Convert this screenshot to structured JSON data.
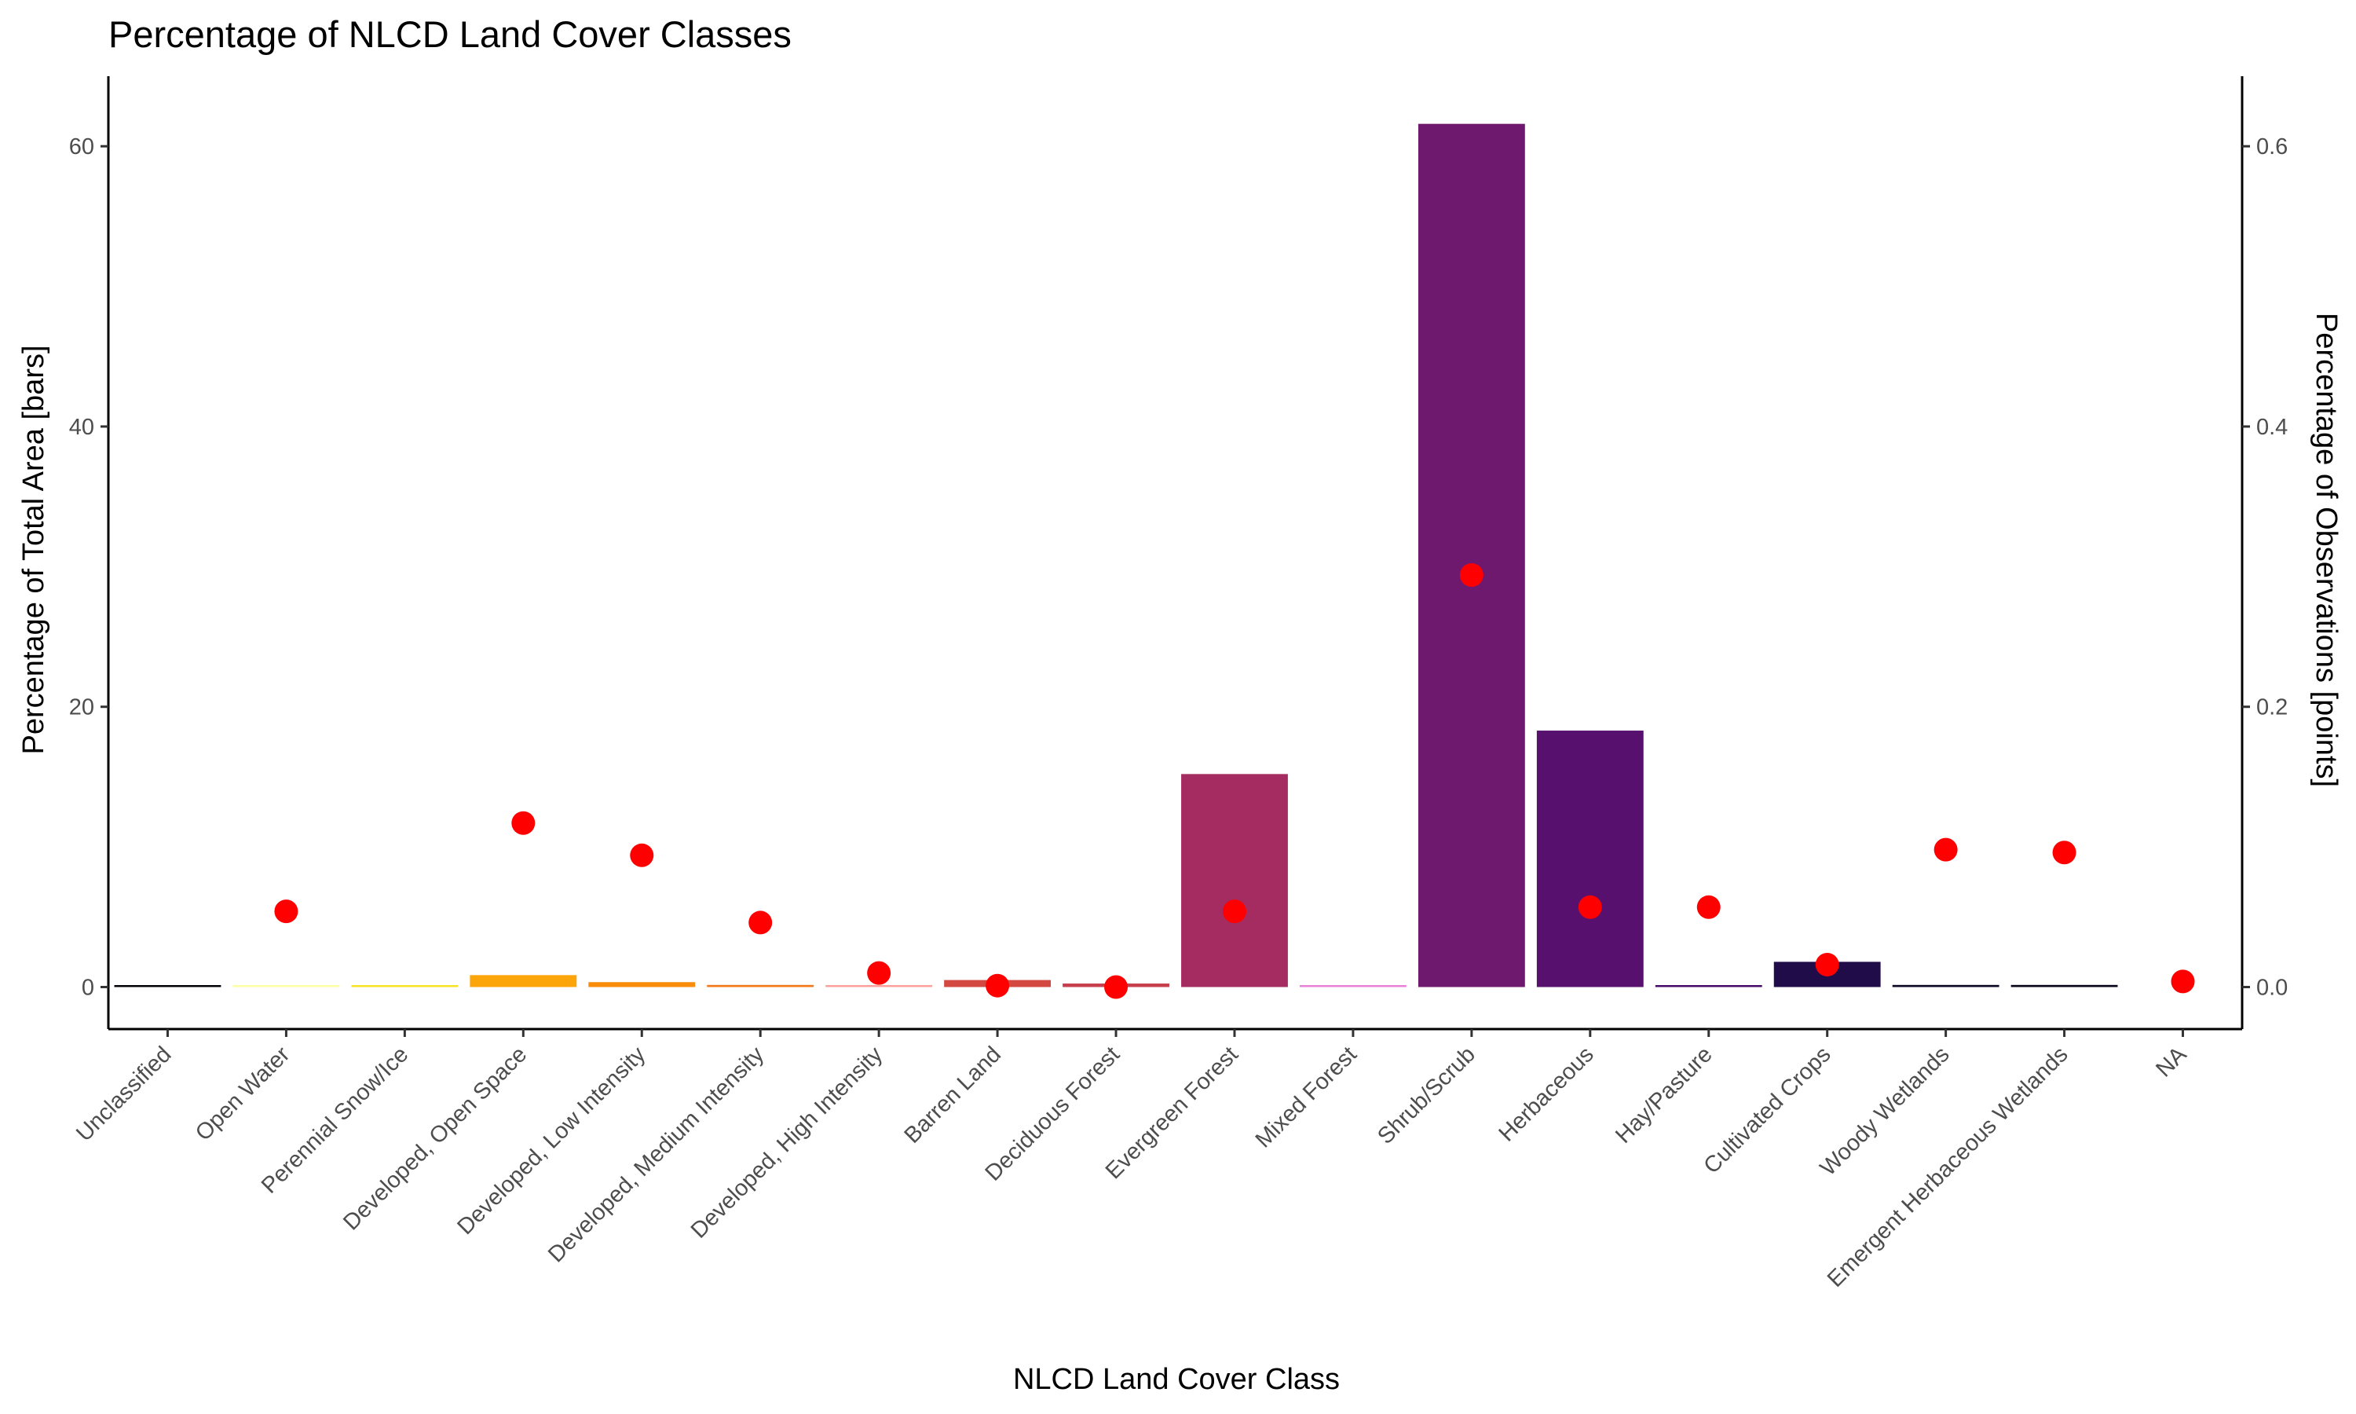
{
  "chart_data": {
    "type": "bar",
    "title": "Percentage of NLCD Land Cover Classes",
    "xlabel": "NLCD Land Cover Class",
    "ylabel": "Percentage of Total Area [bars]",
    "y2label": "Percentage of Observations [points]",
    "ylim": [
      -3,
      65
    ],
    "y2lim": [
      -0.03,
      0.65
    ],
    "yticks": [
      0,
      20,
      40,
      60
    ],
    "y2ticks": [
      "0.0",
      "0.2",
      "0.4",
      "0.6"
    ],
    "grid": false,
    "categories": [
      "Unclassified",
      "Open Water",
      "Perennial Snow/Ice",
      "Developed, Open Space",
      "Developed, Low Intensity",
      "Developed, Medium Intensity",
      "Developed, High Intensity",
      "Barren Land",
      "Deciduous Forest",
      "Evergreen Forest",
      "Mixed Forest",
      "Shrub/Scrub",
      "Herbaceous",
      "Hay/Pasture",
      "Cultivated Crops",
      "Woody Wetlands",
      "Emergent Herbaceous Wetlands",
      "NA"
    ],
    "series": [
      {
        "type": "bar",
        "axis": "left",
        "values": [
          0,
          0.1,
          0,
          0.85,
          0.35,
          0.15,
          0.05,
          0.5,
          0.25,
          15.2,
          0.1,
          61.6,
          18.3,
          0.1,
          1.8,
          0.15,
          0.15,
          null
        ],
        "colors": [
          "#000004",
          "#FCFFA4",
          "#F7E225",
          "#FCA50A",
          "#F98C0A",
          "#F37819",
          "#FCA09C",
          "#D44842",
          "#C73E4C",
          "#A52C60",
          "#E880D8",
          "#6E196E",
          "#57106E",
          "#450A69",
          "#1F0C48",
          "#0B0724",
          "#06051A",
          "#000004"
        ]
      },
      {
        "type": "scatter",
        "axis": "right",
        "color": "#FF0000",
        "values": [
          null,
          0.054,
          null,
          0.117,
          0.094,
          0.046,
          0.01,
          0.001,
          0.0,
          0.054,
          null,
          0.294,
          0.057,
          0.057,
          0.016,
          0.098,
          0.096,
          0.004
        ]
      }
    ]
  }
}
